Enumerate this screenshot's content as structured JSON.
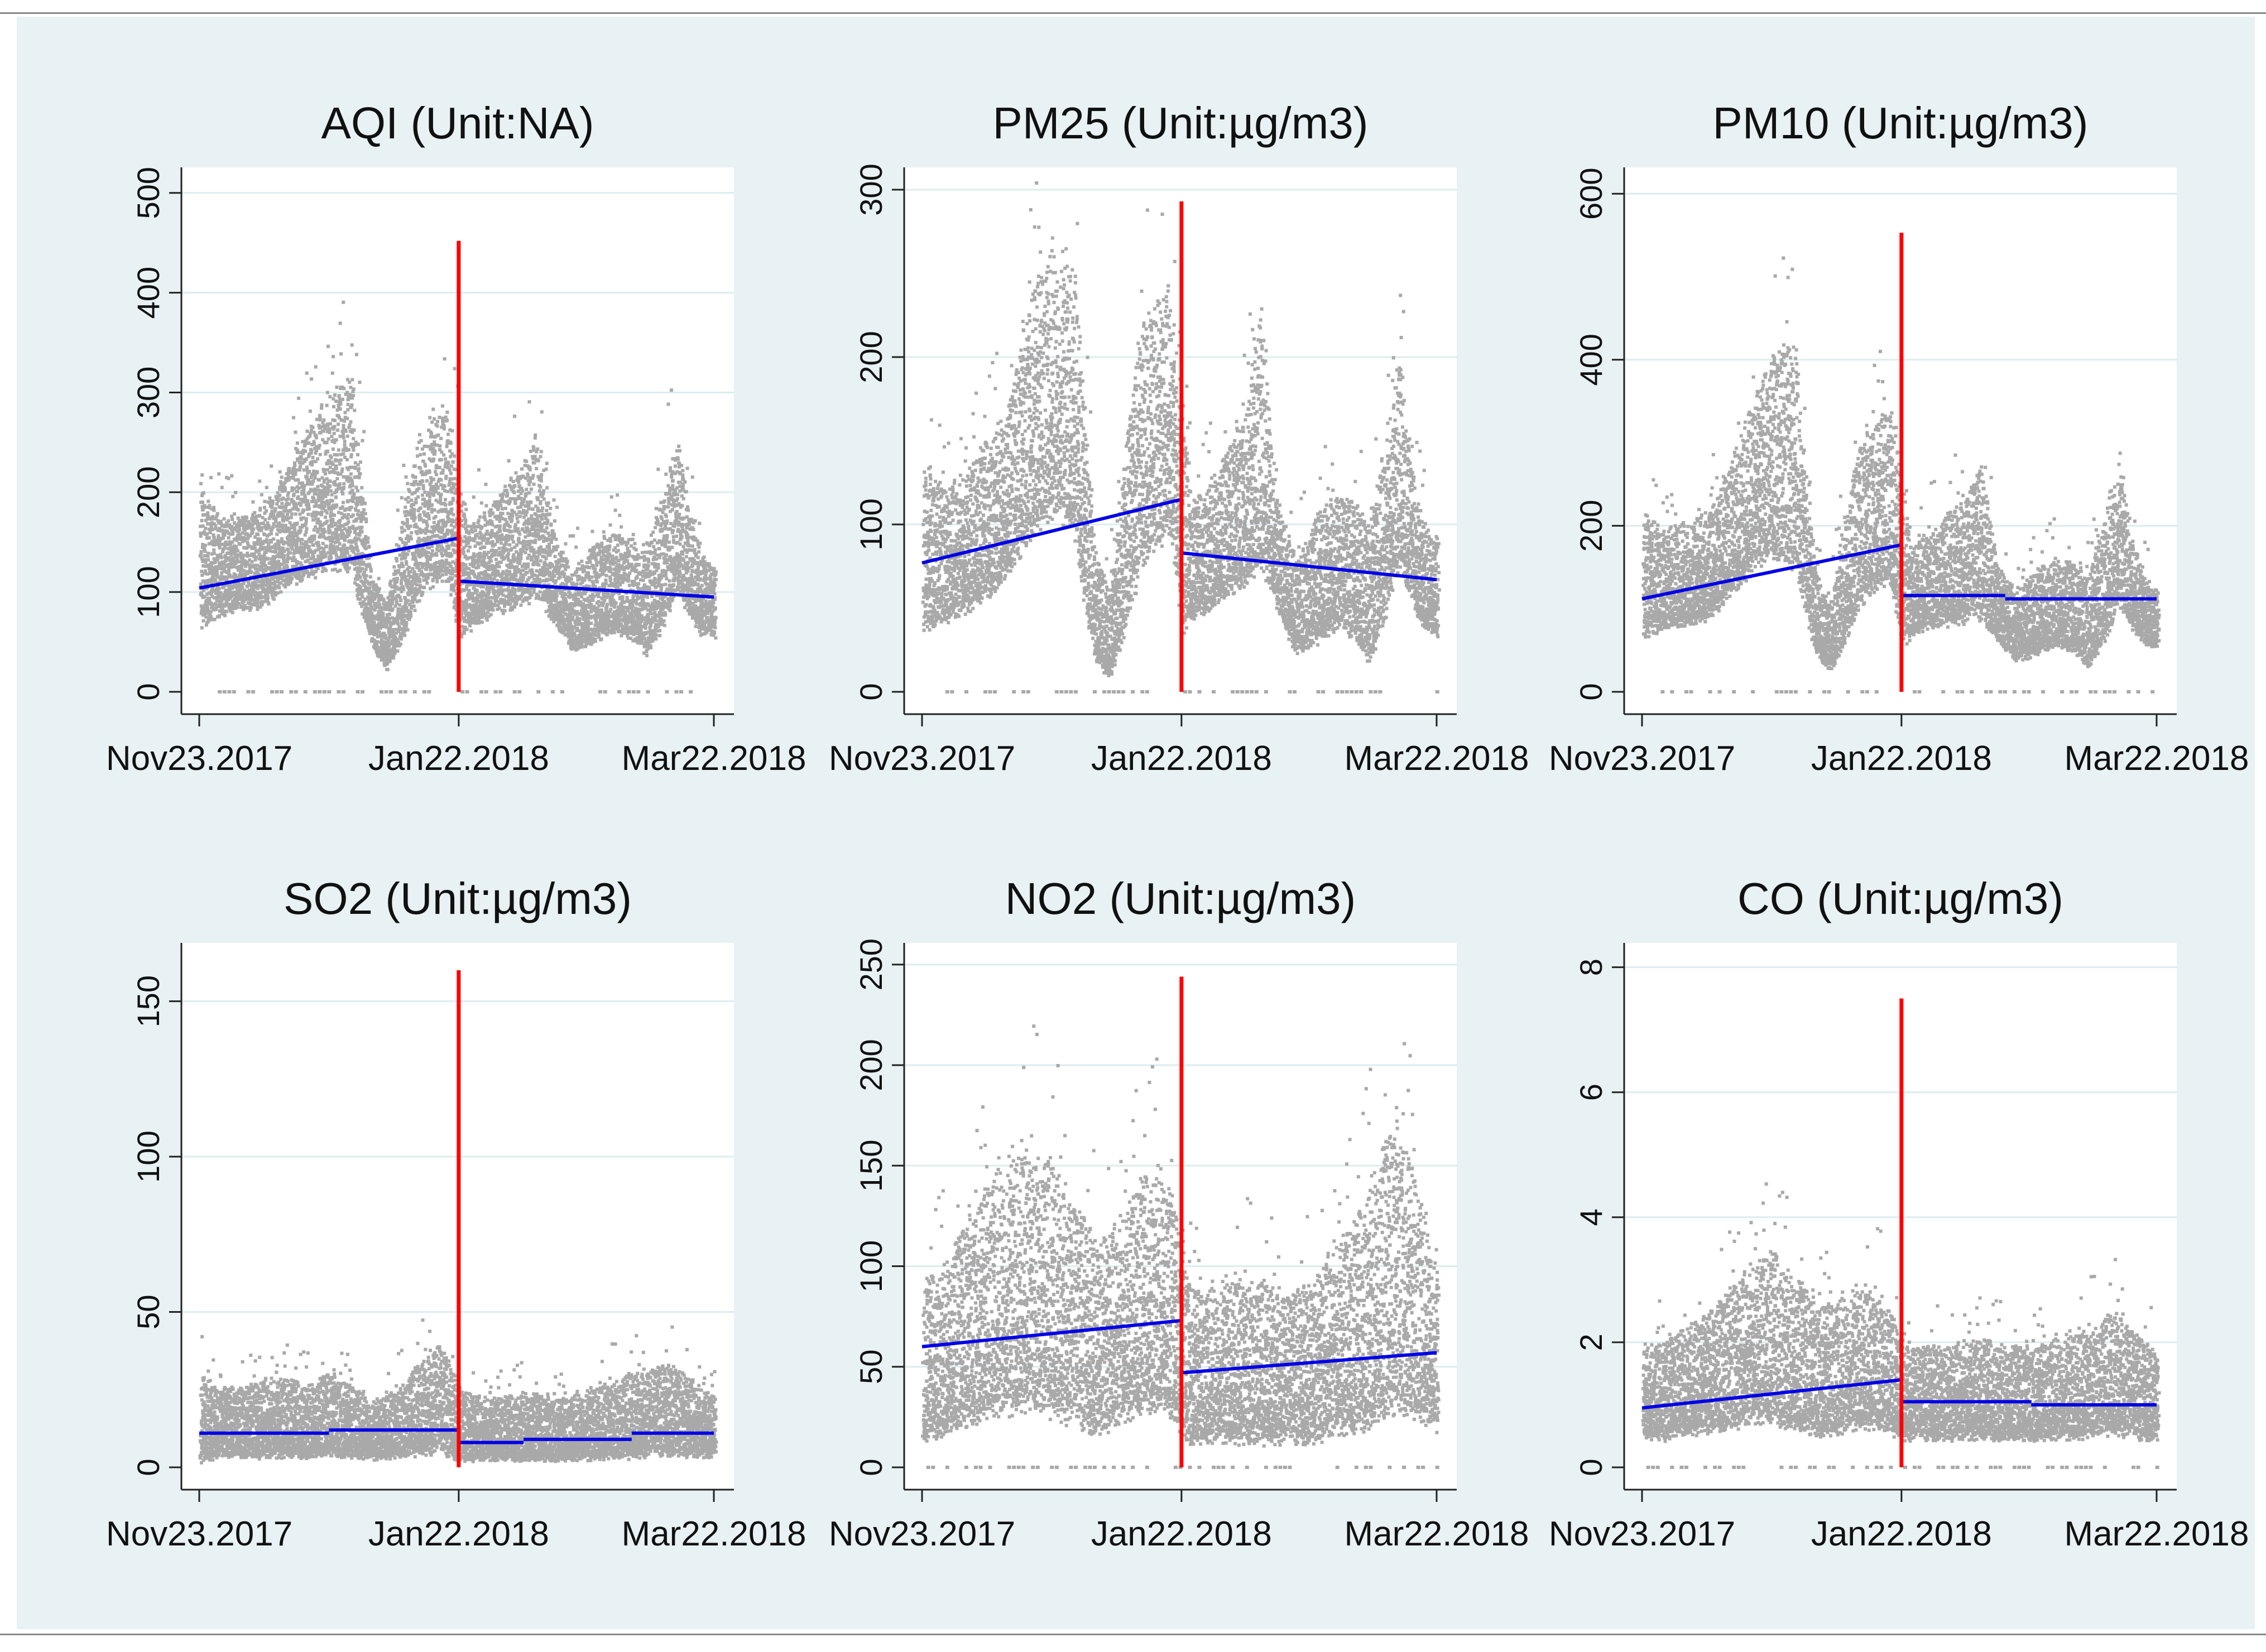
{
  "figure": {
    "background": "#e8f1f3",
    "plot_background": "#ffffff"
  },
  "colors": {
    "points": "#a9a9a9",
    "trend": "#0000e6",
    "cutoff": "#ff0000",
    "grid": "#dcecef",
    "axis": "#222222"
  },
  "chart_data": [
    {
      "type": "scatter",
      "title": "AQI (Unit:NA)",
      "xlabel": "",
      "ylabel": "",
      "x_ticks": [
        "Nov23.2017",
        "Jan22.2018",
        "Mar22.2018"
      ],
      "x_range_days": [
        0,
        119
      ],
      "cutoff_day": 60,
      "ylim": [
        0,
        520
      ],
      "y_ticks": [
        0,
        100,
        200,
        300,
        400,
        500
      ],
      "cutoff_line_top": 452,
      "zero_cluster": true,
      "trend": [
        {
          "segment": "before",
          "x": [
            0,
            60
          ],
          "y": [
            104,
            154
          ]
        },
        {
          "segment": "after",
          "x": [
            60,
            119
          ],
          "y": [
            111,
            95
          ]
        }
      ],
      "density_profile": [
        [
          0,
          70,
          200
        ],
        [
          5,
          80,
          170
        ],
        [
          10,
          85,
          175
        ],
        [
          15,
          90,
          185
        ],
        [
          20,
          110,
          220
        ],
        [
          25,
          120,
          260
        ],
        [
          30,
          130,
          300
        ],
        [
          35,
          125,
          310
        ],
        [
          37,
          90,
          230
        ],
        [
          40,
          45,
          110
        ],
        [
          43,
          25,
          85
        ],
        [
          47,
          60,
          180
        ],
        [
          50,
          95,
          240
        ],
        [
          53,
          110,
          270
        ],
        [
          57,
          120,
          280
        ],
        [
          60,
          60,
          220
        ],
        [
          62,
          65,
          160
        ],
        [
          65,
          75,
          180
        ],
        [
          70,
          85,
          200
        ],
        [
          75,
          95,
          230
        ],
        [
          78,
          100,
          260
        ],
        [
          82,
          70,
          150
        ],
        [
          86,
          45,
          120
        ],
        [
          90,
          50,
          140
        ],
        [
          95,
          65,
          160
        ],
        [
          100,
          55,
          150
        ],
        [
          103,
          40,
          140
        ],
        [
          107,
          70,
          200
        ],
        [
          110,
          110,
          260
        ],
        [
          113,
          80,
          180
        ],
        [
          116,
          60,
          140
        ],
        [
          119,
          55,
          120
        ]
      ]
    },
    {
      "type": "scatter",
      "title": "PM25 (Unit:µg/m3)",
      "xlabel": "",
      "ylabel": "",
      "x_ticks": [
        "Nov23.2017",
        "Jan22.2018",
        "Mar22.2018"
      ],
      "x_range_days": [
        0,
        119
      ],
      "cutoff_day": 60,
      "ylim": [
        0,
        310
      ],
      "y_ticks": [
        0,
        100,
        200,
        300
      ],
      "cutoff_line_top": 293,
      "zero_cluster": true,
      "trend": [
        {
          "segment": "before",
          "x": [
            0,
            60
          ],
          "y": [
            77,
            115
          ]
        },
        {
          "segment": "after",
          "x": [
            60,
            119
          ],
          "y": [
            83,
            67
          ]
        }
      ],
      "density_profile": [
        [
          0,
          40,
          130
        ],
        [
          5,
          45,
          120
        ],
        [
          10,
          50,
          130
        ],
        [
          15,
          60,
          150
        ],
        [
          20,
          75,
          170
        ],
        [
          25,
          100,
          240
        ],
        [
          30,
          110,
          260
        ],
        [
          35,
          100,
          250
        ],
        [
          37,
          60,
          180
        ],
        [
          40,
          20,
          80
        ],
        [
          43,
          10,
          60
        ],
        [
          47,
          40,
          150
        ],
        [
          50,
          80,
          210
        ],
        [
          53,
          90,
          230
        ],
        [
          57,
          100,
          240
        ],
        [
          60,
          40,
          170
        ],
        [
          62,
          45,
          110
        ],
        [
          65,
          50,
          120
        ],
        [
          70,
          60,
          140
        ],
        [
          75,
          70,
          170
        ],
        [
          78,
          80,
          230
        ],
        [
          82,
          50,
          110
        ],
        [
          86,
          25,
          80
        ],
        [
          90,
          30,
          100
        ],
        [
          95,
          40,
          120
        ],
        [
          100,
          35,
          110
        ],
        [
          103,
          20,
          100
        ],
        [
          107,
          50,
          150
        ],
        [
          110,
          80,
          200
        ],
        [
          113,
          55,
          130
        ],
        [
          116,
          40,
          100
        ],
        [
          119,
          35,
          90
        ]
      ]
    },
    {
      "type": "scatter",
      "title": "PM10 (Unit:µg/m3)",
      "xlabel": "",
      "ylabel": "",
      "x_ticks": [
        "Nov23.2017",
        "Jan22.2018",
        "Mar22.2018"
      ],
      "x_range_days": [
        0,
        119
      ],
      "cutoff_day": 60,
      "ylim": [
        0,
        625
      ],
      "y_ticks": [
        0,
        200,
        400,
        600
      ],
      "cutoff_line_top": 553,
      "zero_cluster": true,
      "trend": [
        {
          "segment": "before",
          "x": [
            0,
            60
          ],
          "y": [
            112,
            177
          ]
        },
        {
          "segment": "after",
          "x": [
            60,
            84
          ],
          "y": [
            116,
            116
          ]
        },
        {
          "segment": "after",
          "x": [
            84,
            119
          ],
          "y": [
            112,
            112
          ]
        }
      ],
      "density_profile": [
        [
          0,
          70,
          210
        ],
        [
          5,
          80,
          190
        ],
        [
          10,
          85,
          200
        ],
        [
          15,
          90,
          210
        ],
        [
          20,
          120,
          270
        ],
        [
          25,
          150,
          340
        ],
        [
          30,
          170,
          400
        ],
        [
          35,
          160,
          420
        ],
        [
          37,
          110,
          300
        ],
        [
          40,
          50,
          140
        ],
        [
          43,
          25,
          100
        ],
        [
          47,
          70,
          220
        ],
        [
          50,
          110,
          290
        ],
        [
          53,
          130,
          320
        ],
        [
          57,
          140,
          340
        ],
        [
          60,
          60,
          260
        ],
        [
          62,
          70,
          170
        ],
        [
          65,
          80,
          190
        ],
        [
          70,
          85,
          210
        ],
        [
          75,
          90,
          240
        ],
        [
          78,
          95,
          270
        ],
        [
          82,
          65,
          150
        ],
        [
          86,
          40,
          120
        ],
        [
          90,
          45,
          140
        ],
        [
          95,
          60,
          160
        ],
        [
          100,
          50,
          150
        ],
        [
          103,
          35,
          140
        ],
        [
          107,
          70,
          210
        ],
        [
          110,
          110,
          280
        ],
        [
          113,
          80,
          180
        ],
        [
          116,
          60,
          140
        ],
        [
          119,
          55,
          120
        ]
      ]
    },
    {
      "type": "scatter",
      "title": "SO2 (Unit:µg/m3)",
      "xlabel": "",
      "ylabel": "",
      "x_ticks": [
        "Nov23.2017",
        "Jan22.2018",
        "Mar22.2018"
      ],
      "x_range_days": [
        0,
        119
      ],
      "cutoff_day": 60,
      "ylim": [
        0,
        167
      ],
      "y_ticks": [
        0,
        50,
        100,
        150
      ],
      "cutoff_line_top": 160,
      "zero_cluster": false,
      "trend": [
        {
          "segment": "before",
          "x": [
            0,
            30
          ],
          "y": [
            11,
            11
          ]
        },
        {
          "segment": "before",
          "x": [
            30,
            60
          ],
          "y": [
            12,
            12
          ]
        },
        {
          "segment": "after",
          "x": [
            60,
            75
          ],
          "y": [
            8,
            8
          ]
        },
        {
          "segment": "after",
          "x": [
            75,
            100
          ],
          "y": [
            9,
            9
          ]
        },
        {
          "segment": "after",
          "x": [
            100,
            119
          ],
          "y": [
            11,
            11
          ]
        }
      ],
      "density_profile": [
        [
          0,
          3,
          30
        ],
        [
          5,
          4,
          25
        ],
        [
          10,
          4,
          25
        ],
        [
          15,
          4,
          28
        ],
        [
          20,
          4,
          28
        ],
        [
          25,
          4,
          26
        ],
        [
          30,
          5,
          30
        ],
        [
          35,
          4,
          26
        ],
        [
          40,
          3,
          20
        ],
        [
          45,
          4,
          25
        ],
        [
          50,
          5,
          32
        ],
        [
          55,
          6,
          40
        ],
        [
          60,
          3,
          25
        ],
        [
          65,
          3,
          22
        ],
        [
          70,
          3,
          22
        ],
        [
          75,
          3,
          24
        ],
        [
          80,
          3,
          22
        ],
        [
          85,
          3,
          22
        ],
        [
          90,
          3,
          24
        ],
        [
          95,
          4,
          28
        ],
        [
          100,
          4,
          30
        ],
        [
          105,
          5,
          32
        ],
        [
          110,
          5,
          32
        ],
        [
          115,
          4,
          26
        ],
        [
          119,
          4,
          22
        ]
      ]
    },
    {
      "type": "scatter",
      "title": "NO2 (Unit:µg/m3)",
      "xlabel": "",
      "ylabel": "",
      "x_ticks": [
        "Nov23.2017",
        "Jan22.2018",
        "Mar22.2018"
      ],
      "x_range_days": [
        0,
        119
      ],
      "cutoff_day": 60,
      "ylim": [
        0,
        258
      ],
      "y_ticks": [
        0,
        50,
        100,
        150,
        200,
        250
      ],
      "cutoff_line_top": 244,
      "zero_cluster": true,
      "trend": [
        {
          "segment": "before",
          "x": [
            0,
            60
          ],
          "y": [
            60,
            73
          ]
        },
        {
          "segment": "after",
          "x": [
            60,
            119
          ],
          "y": [
            47,
            57
          ]
        }
      ],
      "density_profile": [
        [
          0,
          15,
          90
        ],
        [
          5,
          20,
          100
        ],
        [
          10,
          25,
          120
        ],
        [
          15,
          30,
          140
        ],
        [
          20,
          30,
          150
        ],
        [
          25,
          35,
          160
        ],
        [
          30,
          30,
          150
        ],
        [
          35,
          25,
          130
        ],
        [
          40,
          20,
          110
        ],
        [
          45,
          25,
          120
        ],
        [
          50,
          30,
          140
        ],
        [
          55,
          35,
          150
        ],
        [
          60,
          20,
          110
        ],
        [
          62,
          15,
          90
        ],
        [
          65,
          15,
          85
        ],
        [
          70,
          15,
          90
        ],
        [
          75,
          15,
          95
        ],
        [
          80,
          15,
          90
        ],
        [
          85,
          15,
          85
        ],
        [
          90,
          15,
          90
        ],
        [
          95,
          20,
          110
        ],
        [
          100,
          20,
          120
        ],
        [
          103,
          25,
          140
        ],
        [
          107,
          30,
          160
        ],
        [
          110,
          35,
          170
        ],
        [
          113,
          30,
          150
        ],
        [
          116,
          25,
          120
        ],
        [
          119,
          20,
          100
        ]
      ]
    },
    {
      "type": "scatter",
      "title": "CO (Unit:µg/m3)",
      "xlabel": "",
      "ylabel": "",
      "x_ticks": [
        "Nov23.2017",
        "Jan22.2018",
        "Mar22.2018"
      ],
      "x_range_days": [
        0,
        119
      ],
      "cutoff_day": 60,
      "ylim": [
        0,
        8.3
      ],
      "y_ticks": [
        0,
        2,
        4,
        6,
        8
      ],
      "cutoff_line_top": 7.5,
      "zero_cluster": true,
      "trend": [
        {
          "segment": "before",
          "x": [
            0,
            60
          ],
          "y": [
            0.95,
            1.4
          ]
        },
        {
          "segment": "after",
          "x": [
            60,
            90
          ],
          "y": [
            1.05,
            1.05
          ]
        },
        {
          "segment": "after",
          "x": [
            90,
            119
          ],
          "y": [
            1.0,
            1.0
          ]
        }
      ],
      "density_profile": [
        [
          0,
          0.5,
          1.8
        ],
        [
          5,
          0.5,
          2.0
        ],
        [
          10,
          0.6,
          2.2
        ],
        [
          15,
          0.6,
          2.4
        ],
        [
          20,
          0.7,
          2.8
        ],
        [
          25,
          0.8,
          3.2
        ],
        [
          30,
          0.8,
          3.4
        ],
        [
          35,
          0.7,
          3.0
        ],
        [
          40,
          0.6,
          2.6
        ],
        [
          45,
          0.6,
          2.6
        ],
        [
          50,
          0.7,
          2.8
        ],
        [
          55,
          0.7,
          2.8
        ],
        [
          60,
          0.5,
          2.0
        ],
        [
          65,
          0.5,
          1.9
        ],
        [
          70,
          0.5,
          1.9
        ],
        [
          75,
          0.5,
          2.0
        ],
        [
          80,
          0.5,
          2.0
        ],
        [
          85,
          0.5,
          1.9
        ],
        [
          90,
          0.5,
          1.9
        ],
        [
          95,
          0.5,
          2.0
        ],
        [
          100,
          0.5,
          2.1
        ],
        [
          105,
          0.6,
          2.3
        ],
        [
          110,
          0.6,
          2.5
        ],
        [
          115,
          0.5,
          2.0
        ],
        [
          119,
          0.5,
          1.8
        ]
      ]
    }
  ]
}
